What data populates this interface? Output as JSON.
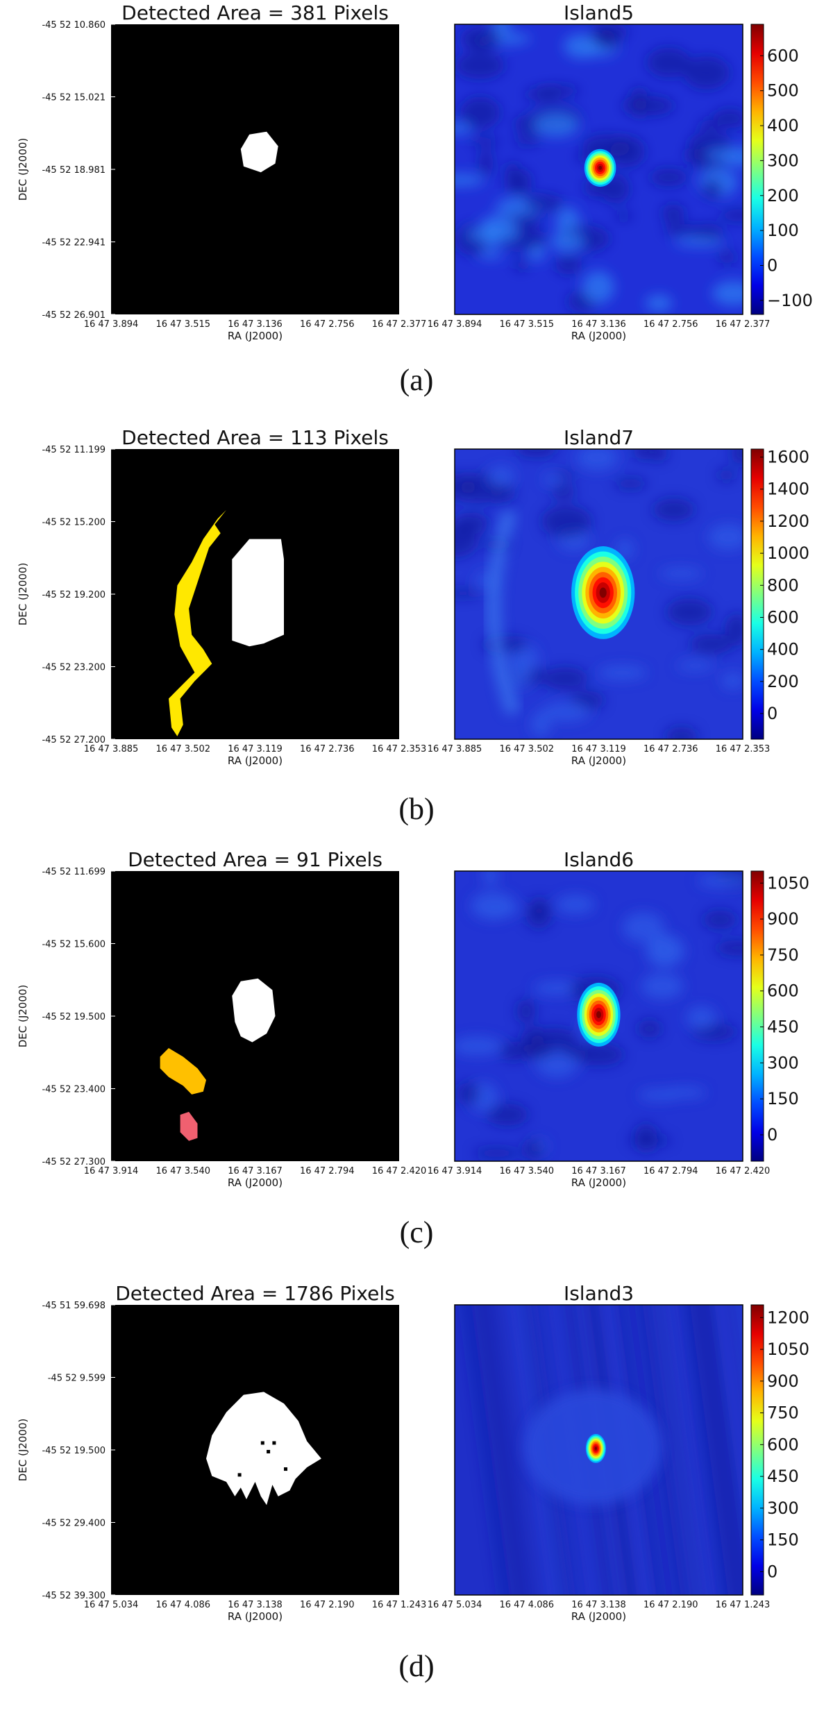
{
  "panels": [
    {
      "caption": "(a)",
      "mask": {
        "title": "Detected Area = 381 Pixels",
        "xlabel": "RA (J2000)",
        "ylabel": "DEC (J2000)",
        "xticks": [
          "16 47 3.894",
          "16 47 3.515",
          "16 47 3.136",
          "16 47 2.756",
          "16 47 2.377"
        ],
        "yticks": [
          "-45 52 10.860",
          "-45 52 15.021",
          "-45 52 18.981",
          "-45 52 22.941",
          "-45 52 26.901"
        ],
        "regions": [
          {
            "color": "#ffffff",
            "label": "source",
            "points": [
              [
                0.46,
                0.49
              ],
              [
                0.45,
                0.43
              ],
              [
                0.48,
                0.38
              ],
              [
                0.54,
                0.37
              ],
              [
                0.58,
                0.42
              ],
              [
                0.57,
                0.48
              ],
              [
                0.52,
                0.51
              ]
            ]
          }
        ]
      },
      "image": {
        "title": "Island5",
        "xlabel": "RA (J2000)",
        "xticks": [
          "16 47 3.894",
          "16 47 3.515",
          "16 47 3.136",
          "16 47 2.756",
          "16 47 2.377"
        ],
        "colorbar_ticks": [
          600,
          500,
          400,
          300,
          200,
          100,
          0,
          -100
        ],
        "colorbar_range": [
          -140,
          690
        ],
        "background": "#2030d8",
        "blobs": [
          {
            "cx": 0.505,
            "cy": 0.495,
            "rx": 0.055,
            "ry": 0.065,
            "peak": "#c00000"
          }
        ],
        "texture": "strong"
      }
    },
    {
      "caption": "(b)",
      "mask": {
        "title": "Detected Area = 113 Pixels",
        "xlabel": "RA (J2000)",
        "ylabel": "DEC (J2000)",
        "xticks": [
          "16 47 3.885",
          "16 47 3.502",
          "16 47 3.119",
          "16 47 2.736",
          "16 47 2.353"
        ],
        "yticks": [
          "-45 52 11.199",
          "-45 52 15.200",
          "-45 52 19.200",
          "-45 52 23.200",
          "-45 52 27.200"
        ],
        "regions": [
          {
            "color": "#ffffff",
            "label": "source",
            "points": [
              [
                0.42,
                0.38
              ],
              [
                0.48,
                0.31
              ],
              [
                0.59,
                0.31
              ],
              [
                0.6,
                0.38
              ],
              [
                0.6,
                0.64
              ],
              [
                0.53,
                0.67
              ],
              [
                0.48,
                0.68
              ],
              [
                0.42,
                0.66
              ]
            ]
          },
          {
            "color": "#ffe800",
            "label": "sidelobe",
            "points": [
              [
                0.36,
                0.26
              ],
              [
                0.4,
                0.21
              ],
              [
                0.37,
                0.24
              ],
              [
                0.32,
                0.31
              ],
              [
                0.28,
                0.39
              ],
              [
                0.23,
                0.47
              ],
              [
                0.22,
                0.57
              ],
              [
                0.24,
                0.68
              ],
              [
                0.29,
                0.77
              ],
              [
                0.24,
                0.82
              ],
              [
                0.2,
                0.86
              ],
              [
                0.21,
                0.96
              ],
              [
                0.23,
                0.99
              ],
              [
                0.25,
                0.95
              ],
              [
                0.24,
                0.86
              ],
              [
                0.29,
                0.8
              ],
              [
                0.33,
                0.76
              ],
              [
                0.35,
                0.74
              ],
              [
                0.32,
                0.69
              ],
              [
                0.28,
                0.64
              ],
              [
                0.27,
                0.55
              ],
              [
                0.31,
                0.43
              ],
              [
                0.34,
                0.34
              ],
              [
                0.38,
                0.29
              ]
            ]
          }
        ]
      },
      "image": {
        "title": "Island7",
        "xlabel": "RA (J2000)",
        "xticks": [
          "16 47 3.885",
          "16 47 3.502",
          "16 47 3.119",
          "16 47 2.736",
          "16 47 2.353"
        ],
        "colorbar_ticks": [
          1600,
          1400,
          1200,
          1000,
          800,
          600,
          400,
          200,
          0
        ],
        "colorbar_range": [
          -160,
          1650
        ],
        "background": "#2438d6",
        "blobs": [
          {
            "cx": 0.515,
            "cy": 0.495,
            "rx": 0.11,
            "ry": 0.16,
            "peak": "#d00000"
          }
        ],
        "texture": "smooth"
      }
    },
    {
      "caption": "(c)",
      "mask": {
        "title": "Detected Area = 91 Pixels",
        "xlabel": "RA (J2000)",
        "ylabel": "DEC (J2000)",
        "xticks": [
          "16 47 3.914",
          "16 47 3.540",
          "16 47 3.167",
          "16 47 2.794",
          "16 47 2.420"
        ],
        "yticks": [
          "-45 52 11.699",
          "-45 52 15.600",
          "-45 52 19.500",
          "-45 52 23.400",
          "-45 52 27.300"
        ],
        "regions": [
          {
            "color": "#ffffff",
            "label": "source",
            "points": [
              [
                0.43,
                0.52
              ],
              [
                0.42,
                0.43
              ],
              [
                0.45,
                0.38
              ],
              [
                0.51,
                0.37
              ],
              [
                0.56,
                0.41
              ],
              [
                0.57,
                0.5
              ],
              [
                0.54,
                0.56
              ],
              [
                0.49,
                0.59
              ],
              [
                0.45,
                0.57
              ]
            ]
          },
          {
            "color": "#ffc000",
            "label": "sidelobe",
            "points": [
              [
                0.17,
                0.64
              ],
              [
                0.2,
                0.61
              ],
              [
                0.25,
                0.64
              ],
              [
                0.3,
                0.68
              ],
              [
                0.33,
                0.72
              ],
              [
                0.32,
                0.76
              ],
              [
                0.28,
                0.77
              ],
              [
                0.25,
                0.74
              ],
              [
                0.2,
                0.71
              ],
              [
                0.17,
                0.68
              ]
            ]
          },
          {
            "color": "#f06070",
            "label": "sidelobe",
            "points": [
              [
                0.24,
                0.84
              ],
              [
                0.27,
                0.83
              ],
              [
                0.3,
                0.87
              ],
              [
                0.3,
                0.92
              ],
              [
                0.27,
                0.93
              ],
              [
                0.24,
                0.9
              ]
            ]
          }
        ]
      },
      "image": {
        "title": "Island6",
        "xlabel": "RA (J2000)",
        "xticks": [
          "16 47 3.914",
          "16 47 3.540",
          "16 47 3.167",
          "16 47 2.794",
          "16 47 2.420"
        ],
        "colorbar_ticks": [
          1050,
          900,
          750,
          600,
          450,
          300,
          150,
          0
        ],
        "colorbar_range": [
          -110,
          1100
        ],
        "background": "#2234d4",
        "blobs": [
          {
            "cx": 0.5,
            "cy": 0.495,
            "rx": 0.075,
            "ry": 0.11,
            "peak": "#d00000"
          }
        ],
        "texture": "smooth"
      }
    },
    {
      "caption": "(d)",
      "mask": {
        "title": "Detected Area = 1786 Pixels",
        "xlabel": "RA (J2000)",
        "ylabel": "DEC (J2000)",
        "xticks": [
          "16 47 5.034",
          "16 47 4.086",
          "16 47 3.138",
          "16 47 2.190",
          "16 47 1.243"
        ],
        "yticks": [
          "-45 51 59.698",
          "-45 52 9.599",
          "-45 52 19.500",
          "-45 52 29.400",
          "-45 52 39.300"
        ],
        "regions": [
          {
            "color": "#ffffff",
            "label": "source",
            "points": [
              [
                0.35,
                0.45
              ],
              [
                0.4,
                0.37
              ],
              [
                0.46,
                0.31
              ],
              [
                0.53,
                0.3
              ],
              [
                0.6,
                0.34
              ],
              [
                0.65,
                0.4
              ],
              [
                0.68,
                0.47
              ],
              [
                0.73,
                0.53
              ],
              [
                0.68,
                0.56
              ],
              [
                0.64,
                0.6
              ],
              [
                0.62,
                0.64
              ],
              [
                0.58,
                0.66
              ],
              [
                0.56,
                0.62
              ],
              [
                0.54,
                0.69
              ],
              [
                0.52,
                0.66
              ],
              [
                0.5,
                0.61
              ],
              [
                0.47,
                0.67
              ],
              [
                0.45,
                0.63
              ],
              [
                0.43,
                0.66
              ],
              [
                0.4,
                0.61
              ],
              [
                0.35,
                0.59
              ],
              [
                0.33,
                0.53
              ]
            ]
          }
        ]
      },
      "image": {
        "title": "Island3",
        "xlabel": "RA (J2000)",
        "xticks": [
          "16 47 5.034",
          "16 47 4.086",
          "16 47 3.138",
          "16 47 2.190",
          "16 47 1.243"
        ],
        "colorbar_ticks": [
          1200,
          1050,
          900,
          750,
          600,
          450,
          300,
          150,
          0
        ],
        "colorbar_range": [
          -110,
          1260
        ],
        "background": "#1f2fc8",
        "blobs": [
          {
            "cx": 0.49,
            "cy": 0.495,
            "rx": 0.035,
            "ry": 0.05,
            "peak": "#d00000"
          }
        ],
        "texture": "striped"
      }
    }
  ]
}
